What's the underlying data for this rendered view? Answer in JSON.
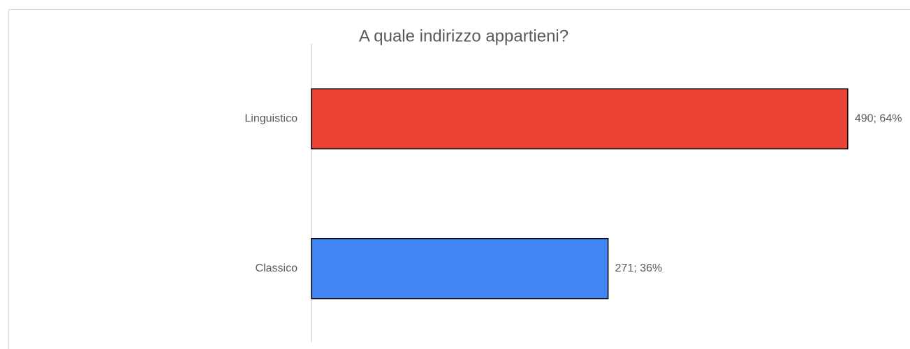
{
  "chart_data": {
    "type": "hbar",
    "title": "A quale indirizzo appartieni?",
    "categories": [
      "Linguistico",
      "Classico"
    ],
    "values": [
      490,
      271
    ],
    "value_labels": [
      "490; 64%",
      "271; 36%"
    ],
    "colors": [
      "#ea4335",
      "#4285f4"
    ],
    "xlim": [
      0,
      500
    ]
  }
}
